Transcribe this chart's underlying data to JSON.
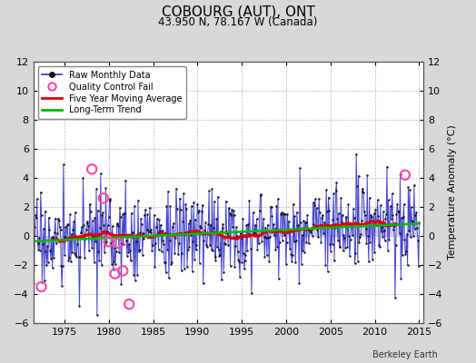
{
  "title": "COBOURG (AUT), ONT",
  "subtitle": "43.950 N, 78.167 W (Canada)",
  "ylabel": "Temperature Anomaly (°C)",
  "attribution": "Berkeley Earth",
  "ylim": [
    -6,
    12
  ],
  "yticks": [
    -6,
    -4,
    -2,
    0,
    2,
    4,
    6,
    8,
    10,
    12
  ],
  "xticks": [
    1975,
    1980,
    1985,
    1990,
    1995,
    2000,
    2005,
    2010,
    2015
  ],
  "xlim": [
    1971.5,
    2015.5
  ],
  "bg_color": "#d8d8d8",
  "plot_bg_color": "#ffffff",
  "raw_line_color": "#3333cc",
  "raw_dot_color": "#111111",
  "raw_fill_color": "#8888dd",
  "qc_color": "#ff44aa",
  "moving_avg_color": "#dd0000",
  "trend_color": "#00bb00",
  "legend_labels": [
    "Raw Monthly Data",
    "Quality Control Fail",
    "Five Year Moving Average",
    "Long-Term Trend"
  ],
  "trend_slope": 0.028,
  "trend_intercept": -0.38,
  "noise_std": 1.55,
  "qc_years": [
    1972.4,
    1978.1,
    1979.4,
    1980.0,
    1980.7,
    1981.1,
    1981.6,
    1982.3,
    2013.4
  ],
  "qc_vals": [
    -3.5,
    4.6,
    2.6,
    -0.4,
    -2.6,
    -0.5,
    -2.4,
    -4.7,
    4.2
  ]
}
